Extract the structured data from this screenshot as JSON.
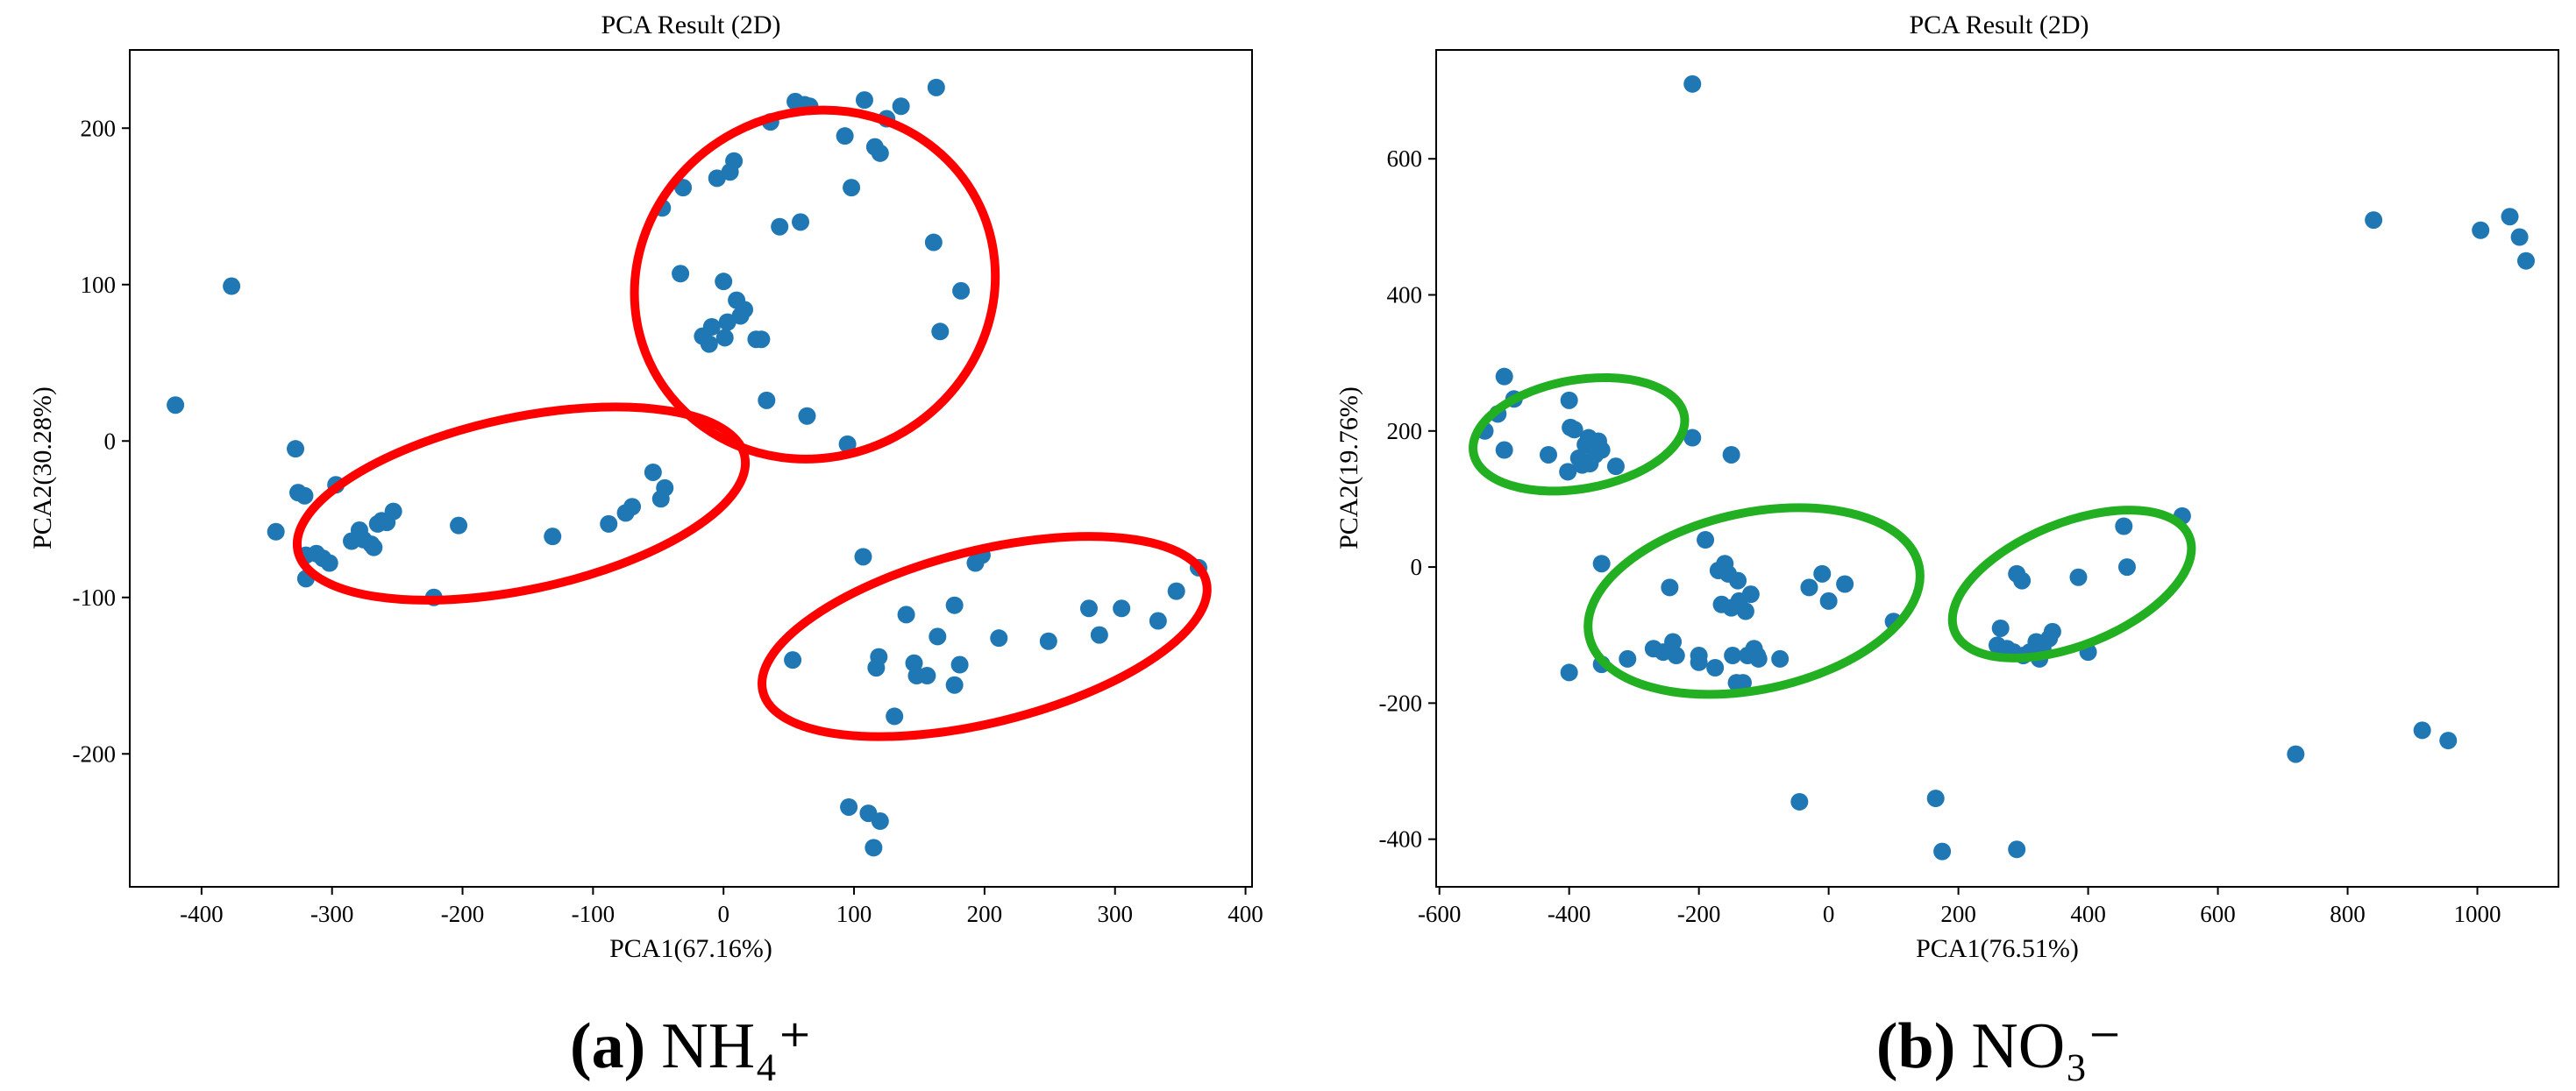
{
  "chart_data": [
    {
      "id": "a",
      "type": "scatter",
      "title": "PCA Result (2D)",
      "xlabel": "PCA1(67.16%)",
      "ylabel": "PCA2(30.28%)",
      "xlim": [
        -455,
        405
      ],
      "ylim": [
        -285,
        250
      ],
      "xticks": [
        -400,
        -300,
        -200,
        -100,
        0,
        100,
        200,
        300,
        400
      ],
      "yticks": [
        -200,
        -100,
        0,
        100,
        200
      ],
      "marker_color": "#1f77b4",
      "caption": {
        "letter": "(a)",
        "text": "NH₄⁺"
      },
      "ellipses": [
        {
          "color": "#ff0000",
          "cx": -155,
          "cy": -40,
          "rx": 175,
          "ry": 55,
          "rotation": -12
        },
        {
          "color": "#ff0000",
          "cx": 70,
          "cy": 100,
          "rx": 140,
          "ry": 110,
          "rotation": -28
        },
        {
          "color": "#ff0000",
          "cx": 200,
          "cy": -125,
          "rx": 175,
          "ry": 55,
          "rotation": -14
        }
      ],
      "points": [
        [
          -420,
          23
        ],
        [
          -377,
          99
        ],
        [
          -343,
          -58
        ],
        [
          -328,
          -5
        ],
        [
          -326,
          -33
        ],
        [
          -321,
          -35
        ],
        [
          -320,
          -73
        ],
        [
          -320,
          -88
        ],
        [
          -312,
          -72
        ],
        [
          -307,
          -75
        ],
        [
          -302,
          -78
        ],
        [
          -297,
          -28
        ],
        [
          -285,
          -64
        ],
        [
          -279,
          -57
        ],
        [
          -276,
          -63
        ],
        [
          -270,
          -66
        ],
        [
          -268,
          -68
        ],
        [
          -265,
          -53
        ],
        [
          -262,
          -51
        ],
        [
          -258,
          -52
        ],
        [
          -253,
          -45
        ],
        [
          -222,
          -100
        ],
        [
          -203,
          -54
        ],
        [
          -131,
          -61
        ],
        [
          -88,
          -53
        ],
        [
          -75,
          -46
        ],
        [
          -70,
          -42
        ],
        [
          -54,
          -20
        ],
        [
          -48,
          -37
        ],
        [
          -45,
          -30
        ],
        [
          -47,
          149
        ],
        [
          -33,
          107
        ],
        [
          -31,
          162
        ],
        [
          -16,
          67
        ],
        [
          -11,
          62
        ],
        [
          -9,
          73
        ],
        [
          -5,
          168
        ],
        [
          0,
          102
        ],
        [
          1,
          66
        ],
        [
          3,
          76
        ],
        [
          5,
          172
        ],
        [
          8,
          179
        ],
        [
          10,
          90
        ],
        [
          13,
          80
        ],
        [
          16,
          84
        ],
        [
          25,
          65
        ],
        [
          29,
          65
        ],
        [
          33,
          26
        ],
        [
          36,
          204
        ],
        [
          43,
          137
        ],
        [
          55,
          217
        ],
        [
          59,
          140
        ],
        [
          62,
          215
        ],
        [
          64,
          16
        ],
        [
          66,
          214
        ],
        [
          93,
          195
        ],
        [
          95,
          -2
        ],
        [
          98,
          162
        ],
        [
          108,
          218
        ],
        [
          116,
          188
        ],
        [
          120,
          184
        ],
        [
          125,
          206
        ],
        [
          136,
          214
        ],
        [
          161,
          127
        ],
        [
          163,
          226
        ],
        [
          166,
          70
        ],
        [
          182,
          96
        ],
        [
          53,
          -140
        ],
        [
          107,
          -74
        ],
        [
          117,
          -145
        ],
        [
          119,
          -138
        ],
        [
          131,
          -176
        ],
        [
          140,
          -111
        ],
        [
          146,
          -142
        ],
        [
          148,
          -150
        ],
        [
          156,
          -150
        ],
        [
          164,
          -125
        ],
        [
          177,
          -105
        ],
        [
          177,
          -156
        ],
        [
          181,
          -143
        ],
        [
          193,
          -78
        ],
        [
          198,
          -73
        ],
        [
          211,
          -126
        ],
        [
          249,
          -128
        ],
        [
          280,
          -107
        ],
        [
          288,
          -124
        ],
        [
          305,
          -107
        ],
        [
          333,
          -115
        ],
        [
          347,
          -96
        ],
        [
          364,
          -81
        ],
        [
          96,
          -234
        ],
        [
          111,
          -238
        ],
        [
          115,
          -260
        ],
        [
          120,
          -243
        ]
      ]
    },
    {
      "id": "b",
      "type": "scatter",
      "title": "PCA Result (2D)",
      "xlabel": "PCA1(76.51%)",
      "ylabel": "PCA2(19.76%)",
      "xlim": [
        -605,
        1125
      ],
      "ylim": [
        -470,
        760
      ],
      "xticks": [
        -600,
        -400,
        -200,
        0,
        200,
        400,
        600,
        800,
        1000
      ],
      "yticks": [
        -400,
        -200,
        0,
        200,
        400,
        600
      ],
      "marker_color": "#1f77b4",
      "caption": {
        "letter": "(b)",
        "text": "NO₃⁻"
      },
      "ellipses": [
        {
          "color": "#22b022",
          "cx": -385,
          "cy": 195,
          "rx": 165,
          "ry": 80,
          "rotation": -10
        },
        {
          "color": "#22b022",
          "cx": -115,
          "cy": -50,
          "rx": 260,
          "ry": 130,
          "rotation": -12
        },
        {
          "color": "#22b022",
          "cx": 375,
          "cy": -25,
          "rx": 195,
          "ry": 90,
          "rotation": -22
        }
      ],
      "points": [
        [
          -530,
          200
        ],
        [
          -510,
          225
        ],
        [
          -500,
          172
        ],
        [
          -500,
          280
        ],
        [
          -485,
          247
        ],
        [
          -432,
          165
        ],
        [
          -402,
          140
        ],
        [
          -400,
          245
        ],
        [
          -398,
          205
        ],
        [
          -392,
          202
        ],
        [
          -385,
          160
        ],
        [
          -380,
          150
        ],
        [
          -375,
          180
        ],
        [
          -370,
          190
        ],
        [
          -368,
          152
        ],
        [
          -360,
          165
        ],
        [
          -355,
          185
        ],
        [
          -350,
          172
        ],
        [
          -328,
          148
        ],
        [
          -210,
          190
        ],
        [
          -150,
          165
        ],
        [
          -210,
          710
        ],
        [
          -400,
          -155
        ],
        [
          -350,
          5
        ],
        [
          -350,
          -143
        ],
        [
          -310,
          -135
        ],
        [
          -270,
          -120
        ],
        [
          -255,
          -125
        ],
        [
          -245,
          -30
        ],
        [
          -240,
          -110
        ],
        [
          -235,
          -130
        ],
        [
          -200,
          -130
        ],
        [
          -200,
          -140
        ],
        [
          -190,
          40
        ],
        [
          -175,
          -148
        ],
        [
          -170,
          -5
        ],
        [
          -165,
          -55
        ],
        [
          -160,
          5
        ],
        [
          -155,
          -10
        ],
        [
          -150,
          -60
        ],
        [
          -148,
          -130
        ],
        [
          -142,
          -170
        ],
        [
          -140,
          -20
        ],
        [
          -138,
          -50
        ],
        [
          -132,
          -170
        ],
        [
          -128,
          -65
        ],
        [
          -125,
          -130
        ],
        [
          -120,
          -40
        ],
        [
          -115,
          -120
        ],
        [
          -110,
          -130
        ],
        [
          -108,
          -135
        ],
        [
          -75,
          -135
        ],
        [
          -30,
          -30
        ],
        [
          -10,
          -10
        ],
        [
          0,
          -50
        ],
        [
          25,
          -25
        ],
        [
          100,
          -80
        ],
        [
          -45,
          -345
        ],
        [
          165,
          -340
        ],
        [
          175,
          -418
        ],
        [
          290,
          -415
        ],
        [
          260,
          -115
        ],
        [
          265,
          -90
        ],
        [
          275,
          -120
        ],
        [
          285,
          -125
        ],
        [
          290,
          -10
        ],
        [
          298,
          -20
        ],
        [
          300,
          -130
        ],
        [
          310,
          -125
        ],
        [
          320,
          -110
        ],
        [
          325,
          -135
        ],
        [
          330,
          -120
        ],
        [
          340,
          -105
        ],
        [
          345,
          -95
        ],
        [
          385,
          -15
        ],
        [
          400,
          -125
        ],
        [
          455,
          60
        ],
        [
          460,
          0
        ],
        [
          545,
          75
        ],
        [
          720,
          -275
        ],
        [
          840,
          510
        ],
        [
          915,
          -240
        ],
        [
          955,
          -255
        ],
        [
          1005,
          495
        ],
        [
          1050,
          515
        ],
        [
          1065,
          485
        ],
        [
          1075,
          450
        ]
      ]
    }
  ]
}
